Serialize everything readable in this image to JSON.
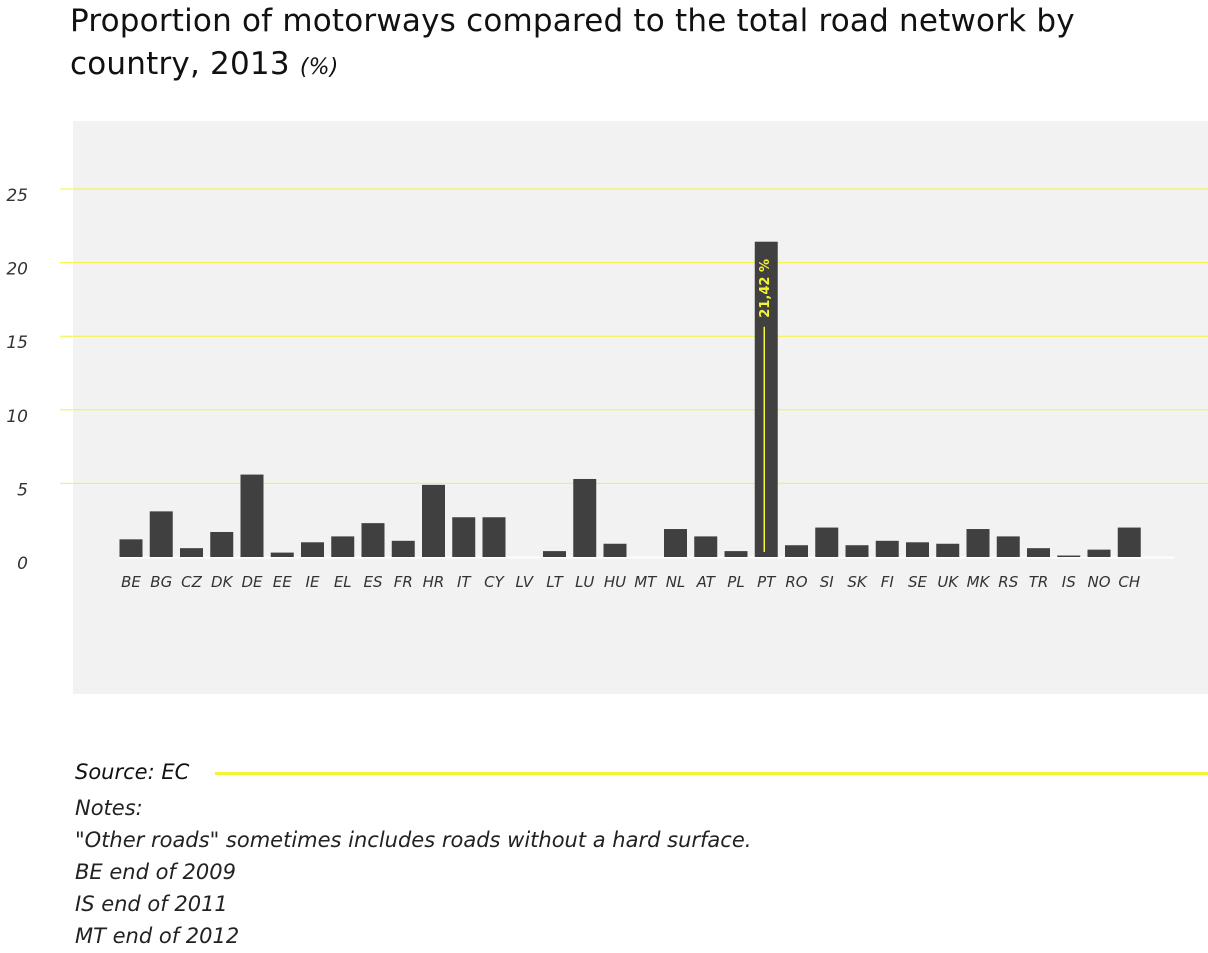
{
  "title": "Proportion of motorways compared to the total road network by country, 2013",
  "title_unit": "(%)",
  "colors": {
    "plot_background": "#f2f2f2",
    "bar": "#404040",
    "gridline": "#f4f434",
    "annotation": "#f4f434",
    "source_rule": "#f4f434"
  },
  "chart_data": {
    "type": "bar",
    "title": "Proportion of motorways compared to the total road network by country, 2013",
    "unit": "%",
    "xlabel": "",
    "ylabel": "",
    "ylim": [
      0,
      25
    ],
    "yticks": [
      0,
      5,
      10,
      15,
      20,
      25
    ],
    "grid": true,
    "categories": [
      "BE",
      "BG",
      "CZ",
      "DK",
      "DE",
      "EE",
      "IE",
      "EL",
      "ES",
      "FR",
      "HR",
      "IT",
      "CY",
      "LV",
      "LT",
      "LU",
      "HU",
      "MT",
      "NL",
      "AT",
      "PL",
      "PT",
      "RO",
      "SI",
      "SK",
      "FI",
      "SE",
      "UK",
      "MK",
      "RS",
      "TR",
      "IS",
      "NO",
      "CH"
    ],
    "values": [
      1.2,
      3.1,
      0.6,
      1.7,
      5.6,
      0.3,
      1.0,
      1.4,
      2.3,
      1.1,
      4.9,
      2.7,
      2.7,
      null,
      0.4,
      5.3,
      0.9,
      null,
      1.9,
      1.4,
      0.4,
      21.42,
      0.8,
      2.0,
      0.8,
      1.1,
      1.0,
      0.9,
      1.9,
      1.4,
      0.6,
      0.1,
      0.5,
      2.0
    ],
    "annotations": [
      {
        "category": "PT",
        "text": "21,42 %"
      }
    ]
  },
  "source": {
    "label": "Source:  EC"
  },
  "notes": [
    "Notes:",
    "\"Other roads\" sometimes includes roads without a hard surface.",
    "BE end of 2009",
    "IS end of 2011",
    "MT end of 2012"
  ]
}
